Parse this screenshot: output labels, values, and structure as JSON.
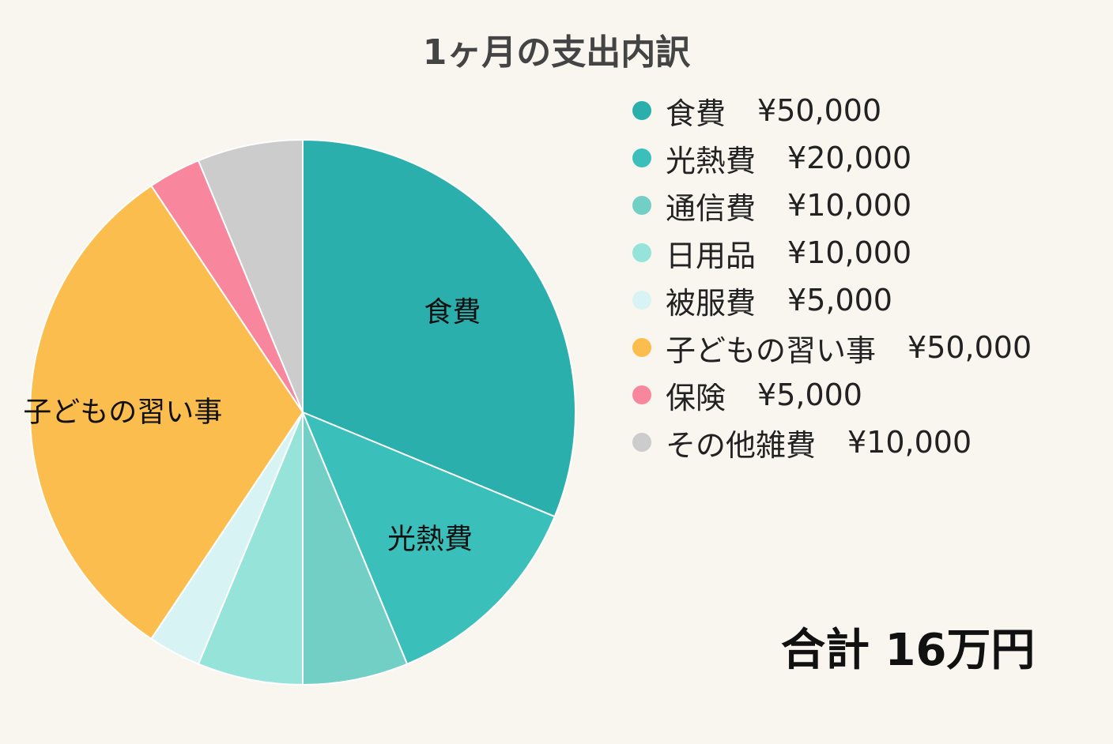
{
  "chart_data": {
    "type": "pie",
    "title": "1ヶ月の支出内訳",
    "unit": "円",
    "slices": [
      {
        "label": "食費",
        "value": 50000,
        "value_label": "¥50,000",
        "color": "#2bafac",
        "show_label": true
      },
      {
        "label": "光熱費",
        "value": 20000,
        "value_label": "¥20,000",
        "color": "#3bbfba",
        "show_label": true
      },
      {
        "label": "通信費",
        "value": 10000,
        "value_label": "¥10,000",
        "color": "#72cfc6",
        "show_label": false
      },
      {
        "label": "日用品",
        "value": 10000,
        "value_label": "¥10,000",
        "color": "#96e3da",
        "show_label": false
      },
      {
        "label": "被服費",
        "value": 5000,
        "value_label": "¥5,000",
        "color": "#d7f3f3",
        "show_label": false
      },
      {
        "label": "子どもの習い事",
        "value": 50000,
        "value_label": "¥50,000",
        "color": "#fbbd4e",
        "show_label": true
      },
      {
        "label": "保険",
        "value": 5000,
        "value_label": "¥5,000",
        "color": "#f8879e",
        "show_label": false
      },
      {
        "label": "その他雑費",
        "value": 10000,
        "value_label": "¥10,000",
        "color": "#cccccc",
        "show_label": false
      }
    ],
    "legend_position": "right",
    "start_angle": "12 o'clock, clockwise"
  },
  "summary": {
    "total_label": "合計 16万円"
  }
}
